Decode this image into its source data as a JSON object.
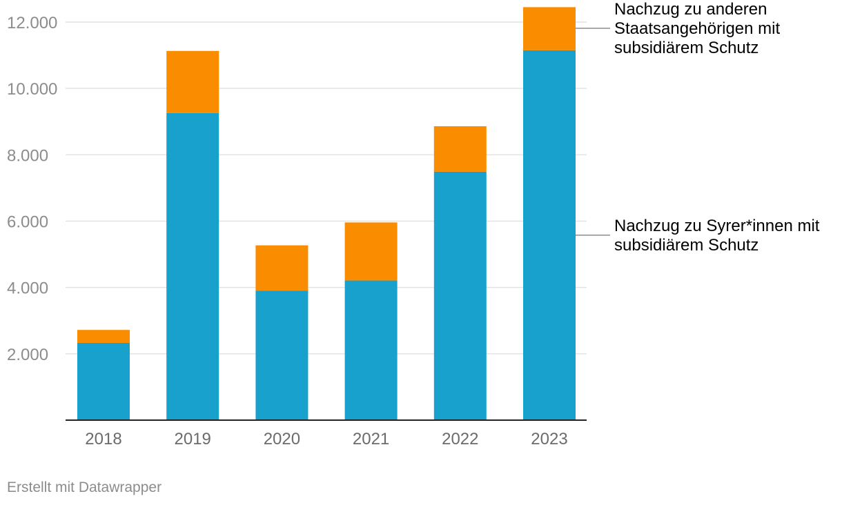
{
  "chart_data": {
    "type": "bar",
    "stacked": true,
    "title": "",
    "xlabel": "",
    "ylabel": "",
    "categories": [
      "2018",
      "2019",
      "2020",
      "2021",
      "2022",
      "2023"
    ],
    "ylim": [
      0,
      12000
    ],
    "yticks": [
      2000,
      4000,
      6000,
      8000,
      10000,
      12000
    ],
    "ytick_labels": [
      "2.000",
      "4.000",
      "6.000",
      "8.000",
      "10.000",
      "12.000"
    ],
    "grid": true,
    "series": [
      {
        "name": "Nachzug zu Syrer*innen mit subsidiärem Schutz",
        "label_lines": [
          "Nachzug zu Syrer*innen mit",
          "subsidiärem Schutz"
        ],
        "color": "#18a1cd",
        "values": [
          2330,
          9260,
          3900,
          4210,
          7490,
          11150
        ]
      },
      {
        "name": "Nachzug zu anderen Staatsangehörigen mit subsidiärem Schutz",
        "label_lines": [
          "Nachzug zu anderen",
          "Staatsangehörigen mit",
          "subsidiärem Schutz"
        ],
        "color": "#fa8c00",
        "values": [
          390,
          1870,
          1370,
          1750,
          1370,
          1300
        ]
      }
    ]
  },
  "credit": "Erstellt mit Datawrapper"
}
